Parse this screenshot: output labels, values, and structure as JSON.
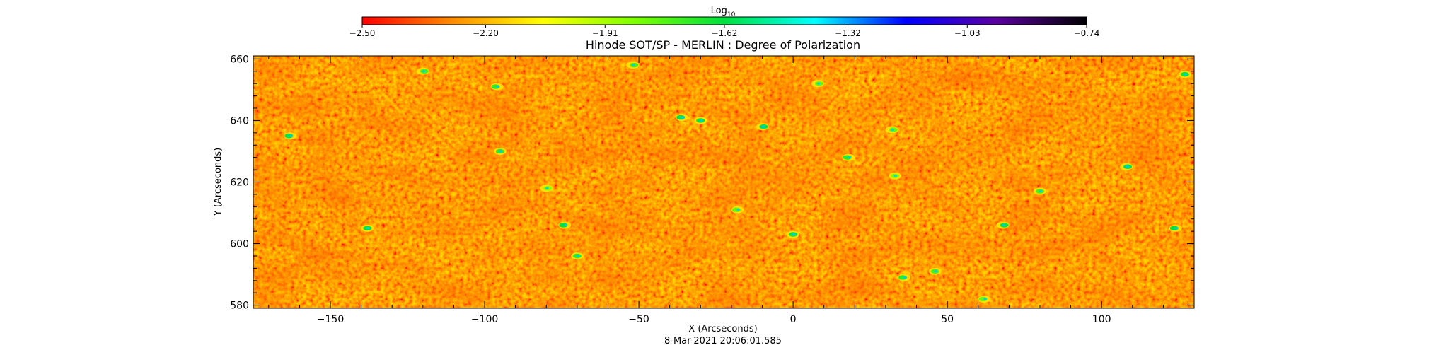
{
  "chart_data": {
    "type": "heatmap",
    "title": "Hinode SOT/SP - MERLIN : Degree of Polarization",
    "xlabel": "X (Arcseconds)",
    "ylabel": "Y (Arcseconds)",
    "timestamp": "8-Mar-2021 20:06:01.585",
    "xlim": [
      -175,
      130
    ],
    "ylim": [
      579,
      661
    ],
    "x_ticks": [
      -150,
      -100,
      -50,
      0,
      50,
      100
    ],
    "x_tick_labels": [
      "−150",
      "−100",
      "−50",
      "0",
      "50",
      "100"
    ],
    "y_ticks": [
      580,
      600,
      620,
      640,
      660
    ],
    "y_tick_labels": [
      "580",
      "600",
      "620",
      "640",
      "660"
    ],
    "colorbar": {
      "label_base": "Log",
      "label_sub": "10",
      "range": [
        -2.5,
        -0.74
      ],
      "ticks": [
        -2.5,
        -2.2,
        -1.91,
        -1.62,
        -1.32,
        -1.03,
        -0.74
      ],
      "tick_labels": [
        "−2.50",
        "−2.20",
        "−1.91",
        "−1.62",
        "−1.32",
        "−1.03",
        "−0.74"
      ],
      "colors": [
        "#ff0000",
        "#ff8c00",
        "#ffff00",
        "#7fff00",
        "#00e040",
        "#00ffff",
        "#0000ff",
        "#5a00a0",
        "#000000"
      ]
    },
    "map_base_colors": [
      "#ff3a00",
      "#ff6a00",
      "#ffa000"
    ],
    "patches": [
      {
        "x": -163,
        "y": 635,
        "value": -1.6
      },
      {
        "x": -138,
        "y": 605,
        "value": -1.65
      },
      {
        "x": -120,
        "y": 656,
        "value": -1.75
      },
      {
        "x": -96,
        "y": 651,
        "value": -1.7
      },
      {
        "x": -95,
        "y": 630,
        "value": -1.7
      },
      {
        "x": -80,
        "y": 618,
        "value": -1.85
      },
      {
        "x": -74,
        "y": 606,
        "value": -1.62
      },
      {
        "x": -70,
        "y": 596,
        "value": -1.7
      },
      {
        "x": -52,
        "y": 658,
        "value": -1.75
      },
      {
        "x": -36,
        "y": 641,
        "value": -1.6
      },
      {
        "x": -30,
        "y": 640,
        "value": -1.65
      },
      {
        "x": -10,
        "y": 638,
        "value": -1.6
      },
      {
        "x": -18,
        "y": 611,
        "value": -1.8
      },
      {
        "x": 0,
        "y": 603,
        "value": -1.65
      },
      {
        "x": 8,
        "y": 652,
        "value": -1.8
      },
      {
        "x": 18,
        "y": 628,
        "value": -1.7
      },
      {
        "x": 33,
        "y": 622,
        "value": -1.85
      },
      {
        "x": 32,
        "y": 637,
        "value": -1.8
      },
      {
        "x": 36,
        "y": 589,
        "value": -1.7
      },
      {
        "x": 46,
        "y": 591,
        "value": -1.75
      },
      {
        "x": 68,
        "y": 606,
        "value": -1.65
      },
      {
        "x": 62,
        "y": 582,
        "value": -1.8
      },
      {
        "x": 80,
        "y": 617,
        "value": -1.75
      },
      {
        "x": 108,
        "y": 625,
        "value": -1.6
      },
      {
        "x": 124,
        "y": 605,
        "value": -1.62
      },
      {
        "x": 127,
        "y": 655,
        "value": -1.65
      }
    ]
  }
}
